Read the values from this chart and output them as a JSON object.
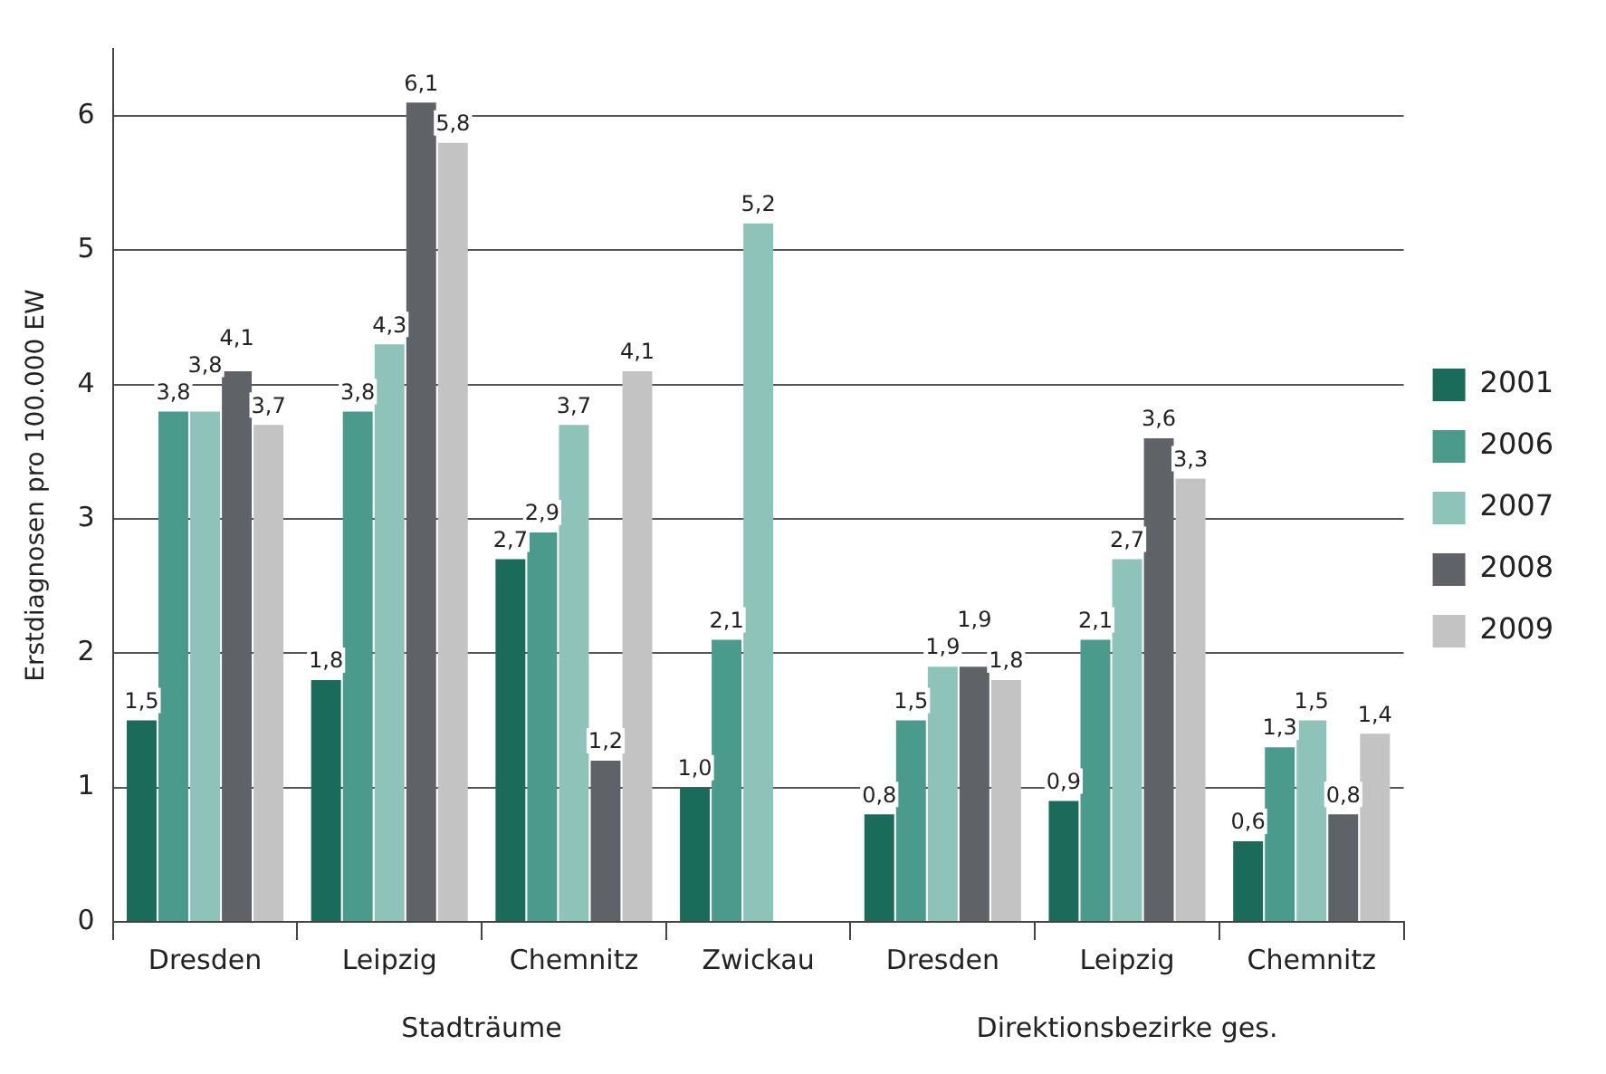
{
  "chart_data": {
    "type": "bar",
    "ylabel": "Erstdiagnosen pro 100.000 EW",
    "categories": [
      "Dresden",
      "Leipzig",
      "Chemnitz",
      "Zwickau",
      "Dresden",
      "Leipzig",
      "Chemnitz"
    ],
    "series": [
      {
        "name": "2001",
        "color": "#1b6b5b",
        "values": [
          1.5,
          1.8,
          2.7,
          1.0,
          0.8,
          0.9,
          0.6
        ],
        "value_labels": [
          "1,5",
          "1,8",
          "2,7",
          "1,0",
          "0,8",
          "0,9",
          "0,6"
        ]
      },
      {
        "name": "2006",
        "color": "#4a9b8b",
        "values": [
          3.8,
          3.8,
          2.9,
          2.1,
          1.5,
          2.1,
          1.3
        ],
        "value_labels": [
          "3,8",
          "3,8",
          "2,9",
          "2,1",
          "1,5",
          "2,1",
          "1,3"
        ]
      },
      {
        "name": "2007",
        "color": "#8dc3b8",
        "values": [
          3.8,
          4.3,
          3.7,
          5.2,
          1.9,
          2.7,
          1.5
        ],
        "value_labels": [
          "3,8",
          "4,3",
          "3,7",
          "5,2",
          "1,9",
          "2,7",
          "1,5"
        ]
      },
      {
        "name": "2008",
        "color": "#5f6367",
        "values": [
          4.1,
          6.1,
          1.2,
          null,
          1.9,
          3.6,
          0.8
        ],
        "value_labels": [
          "4,1",
          "6,1",
          "1,2",
          null,
          "1,9",
          "3,6",
          "0,8"
        ]
      },
      {
        "name": "2009",
        "color": "#c3c3c3",
        "values": [
          3.7,
          5.8,
          4.1,
          null,
          1.8,
          3.3,
          1.4
        ],
        "value_labels": [
          "3,7",
          "5,8",
          "4,1",
          null,
          "1,8",
          "3,3",
          "1,4"
        ]
      }
    ],
    "ylim": [
      0,
      6.5
    ],
    "yticks": [
      0,
      1,
      2,
      3,
      4,
      5,
      6
    ],
    "grid": "y",
    "legend": "right",
    "annotations": [
      "Stadträume",
      "Direktionsbezirke ges."
    ]
  }
}
